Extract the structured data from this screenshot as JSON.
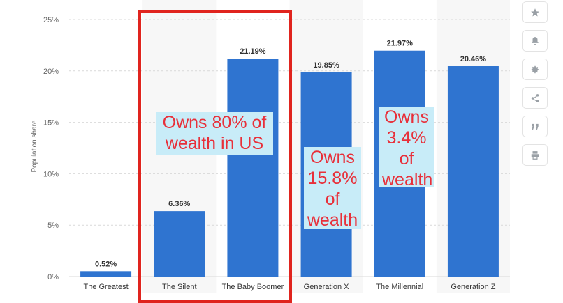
{
  "chart_data": {
    "type": "bar",
    "ylabel": "Population share",
    "ylim": [
      0,
      25
    ],
    "yticks": [
      0,
      5,
      10,
      15,
      20,
      25
    ],
    "ytick_labels": [
      "0%",
      "5%",
      "10%",
      "15%",
      "20%",
      "25%"
    ],
    "categories": [
      "The Greatest",
      "The Silent",
      "The Baby Boomer",
      "Generation X",
      "The Millennial",
      "Generation Z"
    ],
    "values": [
      0.52,
      6.36,
      21.19,
      19.85,
      21.97,
      20.46
    ],
    "value_labels": [
      "0.52%",
      "6.36%",
      "21.19%",
      "19.85%",
      "21.97%",
      "20.46%"
    ],
    "bar_color": "#2f74d0",
    "grid": true,
    "highlight_color": "#e0241e",
    "annotation_bg": "#c8ecf8",
    "annotation_text_color": "#e8303a"
  },
  "annotations": [
    {
      "text": "Owns 80% of wealth in US"
    },
    {
      "text": "Owns 15.8% of wealth"
    },
    {
      "text": "Owns 3.4% of wealth"
    }
  ],
  "sidebar": {
    "items": [
      {
        "icon": "star-icon"
      },
      {
        "icon": "bell-icon"
      },
      {
        "icon": "gear-icon"
      },
      {
        "icon": "share-icon"
      },
      {
        "icon": "quote-icon"
      },
      {
        "icon": "print-icon"
      }
    ]
  }
}
